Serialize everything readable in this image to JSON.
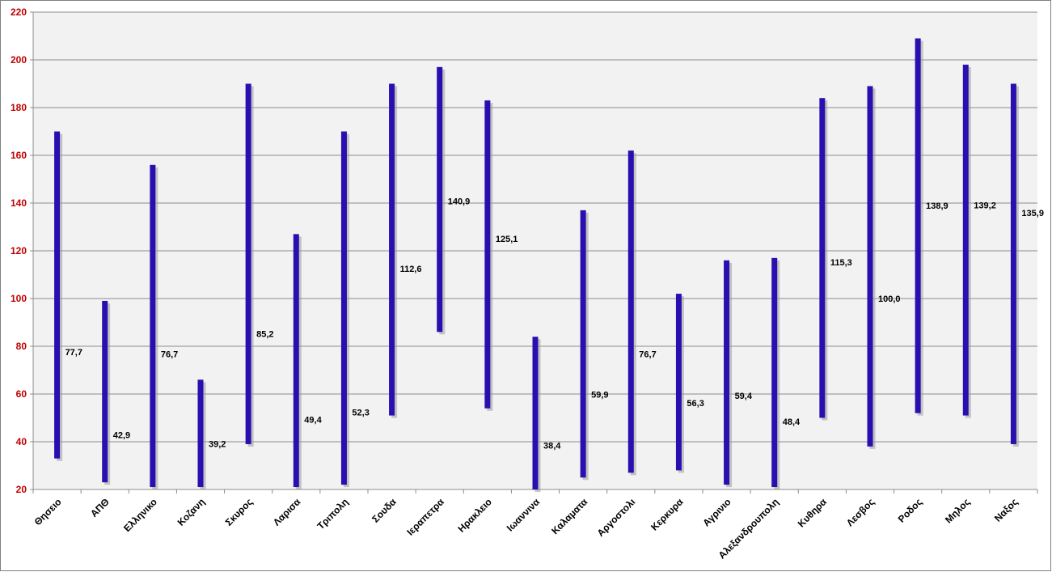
{
  "chart_data": {
    "type": "bar",
    "subtype": "high-low range bars",
    "categories": [
      "Θησειο",
      "ΑΠΘ",
      "Ελληνικο",
      "Κοζανη",
      "Σκυρος",
      "Λαρισα",
      "Τριπολη",
      "Σουδα",
      "Ιεραπετρα",
      "Ηρακλειο",
      "Ιωαννινα",
      "Καλαματα",
      "Αργοστολι",
      "Κερκυρα",
      "Αγρινιο",
      "Αλεξανδρουπολη",
      "Κυθηρα",
      "Λεσβος",
      "Ροδος",
      "Μηλος",
      "Ναξος"
    ],
    "series": [
      {
        "role": "high",
        "values": [
          170,
          99,
          156,
          66,
          190,
          127,
          170,
          190,
          197,
          183,
          84,
          137,
          162,
          102,
          116,
          117,
          184,
          189,
          209,
          198,
          190
        ]
      },
      {
        "role": "low",
        "values": [
          33,
          23,
          21,
          21,
          39,
          21,
          22,
          51,
          86,
          54,
          20,
          25,
          27,
          28,
          22,
          21,
          50,
          38,
          52,
          51,
          39
        ]
      },
      {
        "role": "label",
        "values": [
          77.7,
          42.9,
          76.7,
          39.2,
          85.2,
          49.4,
          52.3,
          112.6,
          140.9,
          125.1,
          38.4,
          59.9,
          76.7,
          56.3,
          59.4,
          48.4,
          115.3,
          100.0,
          138.9,
          139.2,
          135.9
        ]
      }
    ],
    "data_labels": [
      "77,7",
      "42,9",
      "76,7",
      "39,2",
      "85,2",
      "49,4",
      "52,3",
      "112,6",
      "140,9",
      "125,1",
      "38,4",
      "59,9",
      "76,7",
      "56,3",
      "59,4",
      "48,4",
      "115,3",
      "100,0",
      "138,9",
      "139,2",
      "135,9"
    ],
    "y_ticks": [
      "20",
      "40",
      "60",
      "80",
      "100",
      "120",
      "140",
      "160",
      "180",
      "200",
      "220"
    ],
    "ylim": [
      20,
      220
    ],
    "grid": true,
    "legend": "none",
    "colors": {
      "bar": "#2A0FB0",
      "bar_shadow": "#9A9A9A",
      "plot_bg": "#F2F2F2",
      "grid": "#8C8C8C",
      "ytick": "#C00000",
      "xtick": "#000000",
      "border": "#7F7F7F"
    }
  }
}
